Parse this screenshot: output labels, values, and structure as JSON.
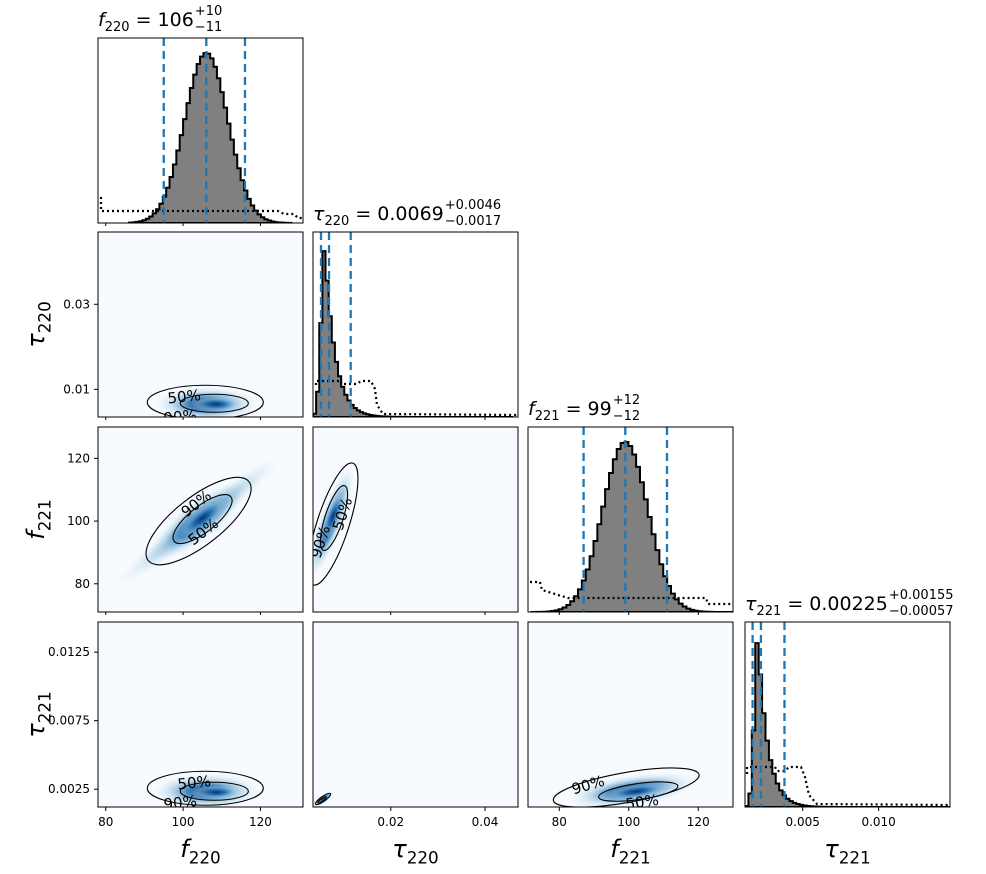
{
  "colors": {
    "dash": "#1f77b4",
    "hist_fill": "#808080",
    "density_low": "#f7fbff",
    "density_high": "#08306b"
  },
  "chart_data": {
    "type": "corner",
    "params": [
      {
        "key": "f220",
        "sym": "f",
        "sub": "220",
        "median": "106",
        "plus": "+10",
        "minus": "−11",
        "range": [
          78,
          131
        ],
        "ticks": [
          80,
          100,
          120
        ],
        "tick_labels": [
          "80",
          "100",
          "120"
        ],
        "quantiles": [
          95,
          106,
          116
        ]
      },
      {
        "key": "tau220",
        "sym": "τ",
        "sub": "220",
        "median": "0.0069",
        "plus": "+0.0046",
        "minus": "−0.0017",
        "range": [
          0.0035,
          0.047
        ],
        "ticks": [
          0.01,
          0.03
        ],
        "tick_labels": [
          "0.01",
          "0.03"
        ],
        "xticks": [
          0.02,
          0.04
        ],
        "xtick_labels": [
          "0.02",
          "0.04"
        ],
        "quantiles": [
          0.0052,
          0.0069,
          0.0115
        ]
      },
      {
        "key": "f221",
        "sym": "f",
        "sub": "221",
        "median": "99",
        "plus": "+12",
        "minus": "−12",
        "range": [
          71,
          130
        ],
        "ticks": [
          80,
          100,
          120
        ],
        "tick_labels": [
          "80",
          "100",
          "120"
        ],
        "xticks": [
          80,
          100,
          120
        ],
        "xtick_labels": [
          "80",
          "100",
          "120"
        ],
        "quantiles": [
          87,
          99,
          111
        ]
      },
      {
        "key": "tau221",
        "sym": "τ",
        "sub": "221",
        "median": "0.00225",
        "plus": "+0.00155",
        "minus": "−0.00057",
        "range": [
          0.0012,
          0.0147
        ],
        "ticks": [
          0.0025,
          0.0075,
          0.0125
        ],
        "tick_labels": [
          "0.0025",
          "0.0075",
          "0.0125"
        ],
        "xticks": [
          0.005,
          0.01
        ],
        "xtick_labels": [
          "0.005",
          "0.010"
        ],
        "quantiles": [
          0.0017,
          0.00225,
          0.0038
        ]
      }
    ],
    "contour_levels": [
      "50%",
      "90%"
    ]
  }
}
